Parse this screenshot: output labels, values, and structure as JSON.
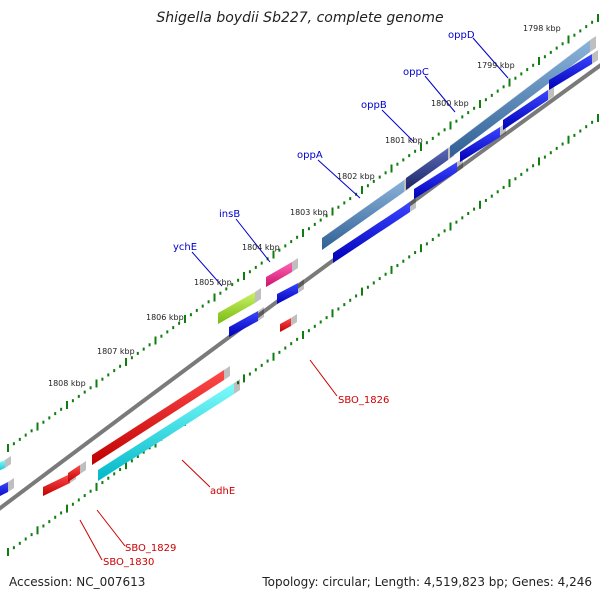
{
  "title": "Shigella boydii Sb227, complete genome",
  "accession": "Accession: NC_007613",
  "summary": "Topology: circular; Length: 4,519,823 bp; Genes: 4,246",
  "ticks": [
    {
      "label": "1798 kbp"
    },
    {
      "label": "1799 kbp"
    },
    {
      "label": "1800 kbp"
    },
    {
      "label": "1801 kbp"
    },
    {
      "label": "1802 kbp"
    },
    {
      "label": "1803 kbp"
    },
    {
      "label": "1804 kbp"
    },
    {
      "label": "1805 kbp"
    },
    {
      "label": "1806 kbp"
    },
    {
      "label": "1807 kbp"
    },
    {
      "label": "1808 kbp"
    }
  ],
  "genes": [
    {
      "name": "oppD",
      "color": "#0000cc"
    },
    {
      "name": "oppC",
      "color": "#0000cc"
    },
    {
      "name": "oppB",
      "color": "#0000cc"
    },
    {
      "name": "oppA",
      "color": "#0000cc"
    },
    {
      "name": "insB",
      "color": "#0000cc"
    },
    {
      "name": "ychE",
      "color": "#0000cc"
    },
    {
      "name": "SBO_1826",
      "color": "#cc0000"
    },
    {
      "name": "adhE",
      "color": "#cc0000"
    },
    {
      "name": "SBO_1829",
      "color": "#cc0000"
    },
    {
      "name": "SBO_1830",
      "color": "#cc0000"
    }
  ],
  "colors": {
    "backbone": "#7a7a7a",
    "tick_green": "#0f7d0f",
    "forward_cds": "#1010ee",
    "reverse_cds": "#ee1010",
    "blast_steel": "#4a82b8",
    "blast_navy": "#2a3a8a",
    "blast_lime": "#99dd22",
    "blast_magenta": "#ee2288",
    "blast_cyan": "#11e0e0"
  }
}
